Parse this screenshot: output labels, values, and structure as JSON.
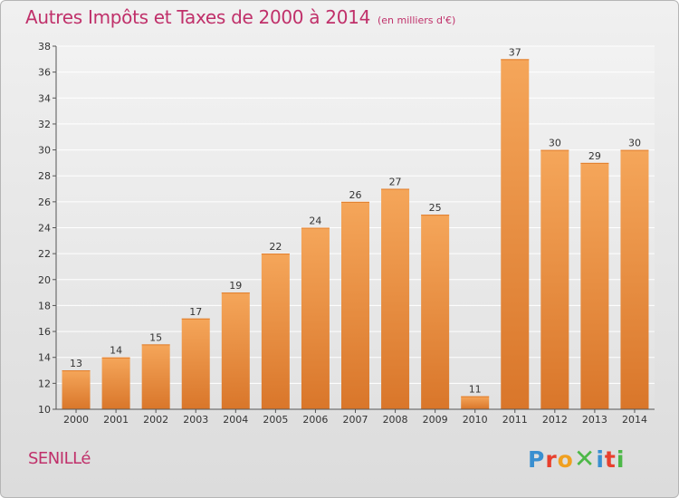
{
  "header": {
    "title": "Autres Impôts et Taxes de 2000 à 2014",
    "subtitle": "(en milliers d'€)"
  },
  "footer": {
    "commune": "SENILLé",
    "logo_text": "Proxiti"
  },
  "colors": {
    "title": "#c0306a",
    "bar_light": "#f5a65a",
    "bar_dark": "#d9762a",
    "bar_top": "#e07c2a"
  },
  "chart_data": {
    "type": "bar",
    "categories": [
      "2000",
      "2001",
      "2002",
      "2003",
      "2004",
      "2005",
      "2006",
      "2007",
      "2008",
      "2009",
      "2010",
      "2011",
      "2012",
      "2013",
      "2014"
    ],
    "values": [
      13,
      14,
      15,
      17,
      19,
      22,
      24,
      26,
      27,
      25,
      11,
      37,
      30,
      29,
      30
    ],
    "title": "Autres Impôts et Taxes de 2000 à 2014",
    "subtitle": "(en milliers d'€)",
    "xlabel": "",
    "ylabel": "",
    "ylim": [
      10,
      38
    ],
    "yticks": [
      10,
      12,
      14,
      16,
      18,
      20,
      22,
      24,
      26,
      28,
      30,
      32,
      34,
      36,
      38
    ],
    "grid": true,
    "legend": "none"
  }
}
